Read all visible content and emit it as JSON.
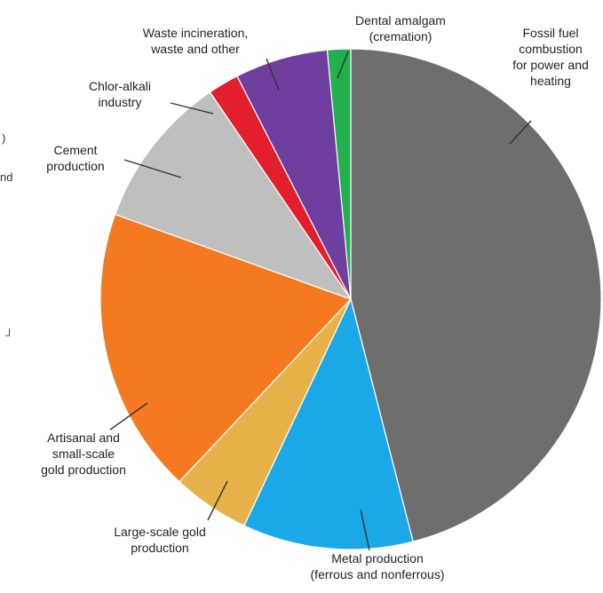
{
  "chart_data": {
    "type": "pie",
    "slices": [
      {
        "label": "Fossil fuel combustion for power and heating",
        "value": 46.0,
        "color": "#6e6e6e"
      },
      {
        "label": "Metal production (ferrous and nonferrous)",
        "value": 11.0,
        "color": "#1aa9e6"
      },
      {
        "label": "Large-scale gold production",
        "value": 5.0,
        "color": "#e8b24a"
      },
      {
        "label": "Artisanal and small-scale gold production",
        "value": 18.5,
        "color": "#f47920"
      },
      {
        "label": "Cement production",
        "value": 10.0,
        "color": "#bfbfbf"
      },
      {
        "label": "Chlor-alkali industry",
        "value": 2.0,
        "color": "#e31e2d"
      },
      {
        "label": "Waste incineration, waste and other",
        "value": 6.0,
        "color": "#6f3fa0"
      },
      {
        "label": "Dental amalgam (cremation)",
        "value": 1.5,
        "color": "#21b04b"
      }
    ]
  },
  "labels": {
    "fossil": [
      "Fossil fuel",
      "combustion",
      "for power and",
      "heating"
    ],
    "metal": [
      "Metal production",
      "(ferrous and nonferrous)"
    ],
    "large_gold": [
      "Large-scale gold",
      "production"
    ],
    "artisanal": [
      "Artisanal and",
      "small-scale",
      "gold production"
    ],
    "cement": [
      "Cement",
      "production"
    ],
    "chlor": [
      "Chlor-alkali",
      "industry"
    ],
    "waste": [
      "Waste incineration,",
      "waste and other"
    ],
    "dental": [
      "Dental amalgam",
      "(cremation)"
    ]
  },
  "edge_fragments": {
    "left_fragment": "nd",
    "left_mark": "┘",
    "left_paren": ")"
  }
}
